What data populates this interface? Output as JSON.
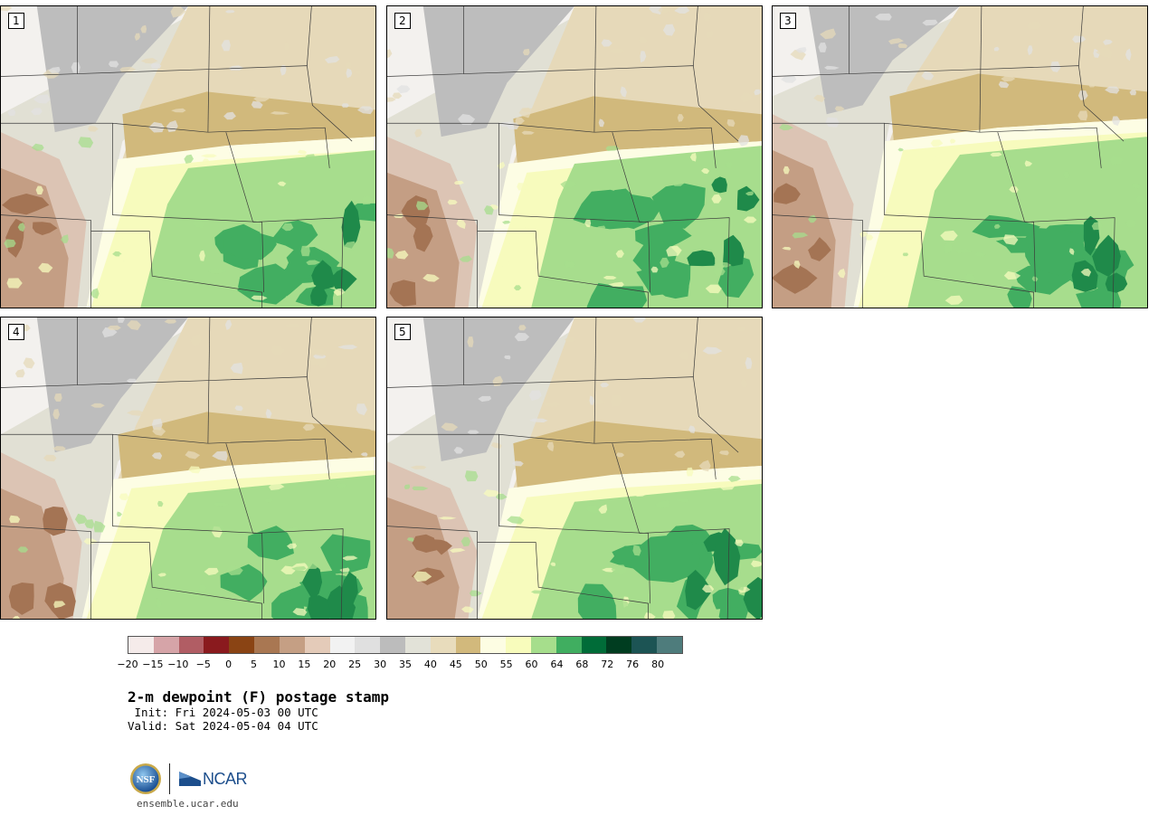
{
  "panels": [
    {
      "label": "1"
    },
    {
      "label": "2"
    },
    {
      "label": "3"
    },
    {
      "label": "4"
    },
    {
      "label": "5"
    }
  ],
  "colorbar": {
    "colors": [
      "#f5ebea",
      "#d6a4a8",
      "#b15d64",
      "#8a1a1e",
      "#8a4414",
      "#a97752",
      "#c59f84",
      "#e4cbb9",
      "#f2f2f2",
      "#e0e0e0",
      "#bcbcbc",
      "#e2e2d8",
      "#e8dcbc",
      "#d2b97c",
      "#fdfde3",
      "#f8fcbc",
      "#a6de8c",
      "#40ae60",
      "#006c38",
      "#003d20",
      "#1c5454",
      "#4e7c7c"
    ],
    "tick_labels": [
      "−20",
      "−15",
      "−10",
      "−5",
      "0",
      "5",
      "10",
      "15",
      "20",
      "25",
      "30",
      "35",
      "40",
      "45",
      "50",
      "55",
      "60",
      "64",
      "68",
      "72",
      "76",
      "80"
    ]
  },
  "title": "2-m dewpoint (F) postage stamp",
  "init": " Init: Fri 2024-05-03 00 UTC",
  "valid": "Valid: Sat 2024-05-04 04 UTC",
  "logos": {
    "nsf": "NSF",
    "ncar": "NCAR"
  },
  "url": "ensemble.ucar.edu",
  "icons": {
    "nsf": "nsf-globe-icon",
    "ncar": "ncar-wedge-icon"
  }
}
